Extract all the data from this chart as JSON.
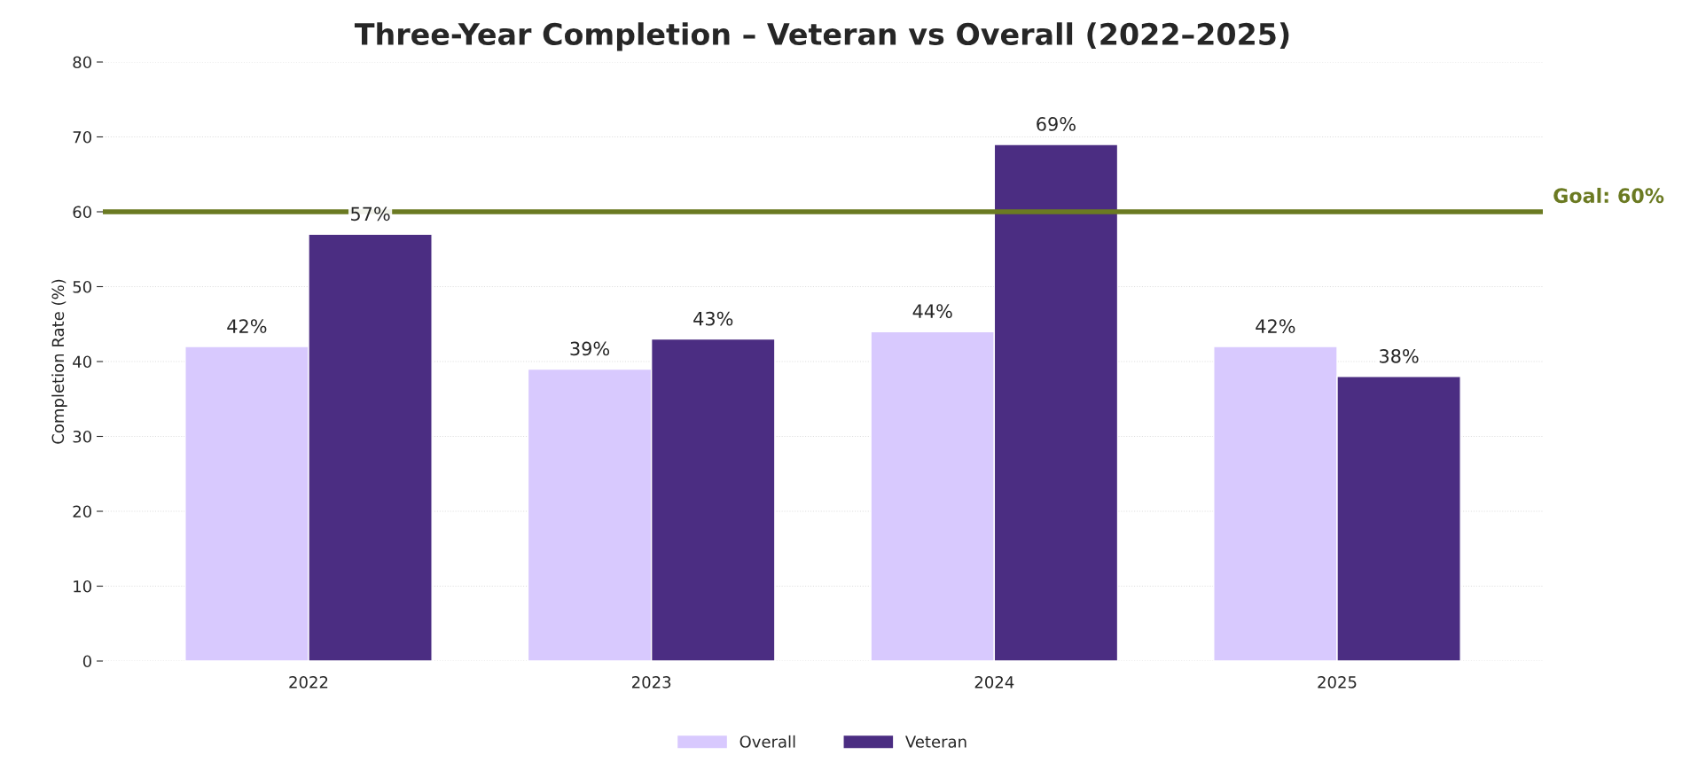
{
  "chart_data": {
    "type": "bar",
    "title": "Three-Year Completion – Veteran vs Overall (2022–2025)",
    "ylabel": "Completion Rate (%)",
    "categories": [
      "2022",
      "2023",
      "2024",
      "2025"
    ],
    "series": [
      {
        "name": "Overall",
        "color": "#d8c9fe",
        "values": [
          42,
          39,
          44,
          42
        ],
        "value_labels": [
          "42%",
          "39%",
          "44%",
          "42%"
        ]
      },
      {
        "name": "Veteran",
        "color": "#4b2d82",
        "values": [
          57,
          43,
          69,
          38
        ],
        "value_labels": [
          "57%",
          "43%",
          "69%",
          "38%"
        ]
      }
    ],
    "ylim": [
      0,
      80
    ],
    "yticks": [
      0,
      10,
      20,
      30,
      40,
      50,
      60,
      70,
      80
    ],
    "ref_lines": [
      {
        "axis": "y",
        "value": 60,
        "label": "Goal: 60%",
        "color": "#6b7a22",
        "line_style": "solid"
      }
    ],
    "grid": "y",
    "legend": "bottom"
  }
}
